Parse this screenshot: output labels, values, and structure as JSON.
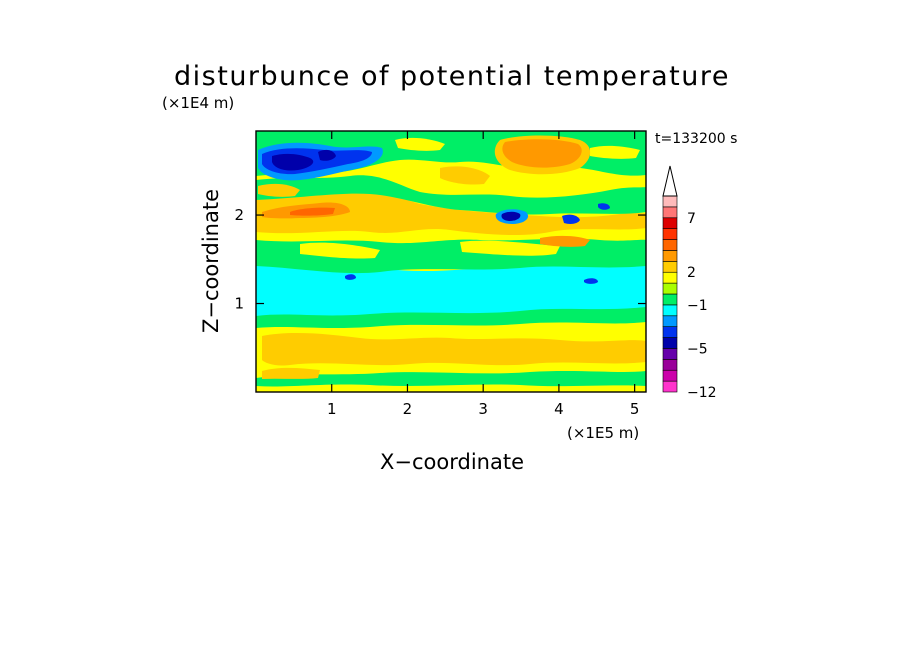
{
  "chart_data": {
    "type": "heatmap",
    "title": "disturbunce of potential temperature",
    "xlabel": "X−coordinate",
    "ylabel": "Z−coordinate",
    "x_scale_label": "(×1E5 m)",
    "y_scale_label": "(×1E4 m)",
    "time_label": "t=133200 s",
    "xlim": [
      0,
      5.15
    ],
    "ylim": [
      0,
      2.95
    ],
    "x_ticks": [
      1,
      2,
      3,
      4,
      5
    ],
    "y_ticks": [
      1,
      2
    ],
    "x_tick_labels": [
      "1",
      "2",
      "3",
      "4",
      "5"
    ],
    "y_tick_labels": [
      "1",
      "2"
    ],
    "colorbar": {
      "levels": [
        -12,
        -10,
        -8,
        -6,
        -5,
        -4,
        -3,
        -2,
        -1,
        0,
        1,
        2,
        3,
        4,
        5,
        6,
        7,
        8,
        9
      ],
      "labels": [
        {
          "value": 7,
          "text": "7"
        },
        {
          "value": 2,
          "text": "2"
        },
        {
          "value": -1,
          "text": "−1"
        },
        {
          "value": -5,
          "text": "−5"
        },
        {
          "value": -12,
          "text": "−12"
        }
      ],
      "colors_bottom_to_top": [
        "#ff33cc",
        "#cc00aa",
        "#990099",
        "#6600aa",
        "#0000aa",
        "#0033ee",
        "#0099ff",
        "#00ffff",
        "#00ee66",
        "#aaff00",
        "#ffff00",
        "#ffcc00",
        "#ff9900",
        "#ff6600",
        "#ff3300",
        "#dd0000",
        "#ff7777",
        "#ffbbbb"
      ],
      "extend": "max"
    },
    "field_bands_bottom_to_top": [
      {
        "z_from": 0.0,
        "z_to": 0.08,
        "level": "yellow"
      },
      {
        "z_from": 0.08,
        "z_to": 0.25,
        "level": "green"
      },
      {
        "z_from": 0.25,
        "z_to": 0.7,
        "level": "yellow-orange"
      },
      {
        "z_from": 0.7,
        "z_to": 0.85,
        "level": "green"
      },
      {
        "z_from": 0.85,
        "z_to": 1.35,
        "level": "cyan"
      },
      {
        "z_from": 1.35,
        "z_to": 1.55,
        "level": "green"
      },
      {
        "z_from": 1.55,
        "z_to": 1.8,
        "level": "yellow"
      },
      {
        "z_from": 1.8,
        "z_to": 2.05,
        "level": "green"
      },
      {
        "z_from": 2.05,
        "z_to": 2.35,
        "level": "yellow-orange"
      },
      {
        "z_from": 2.35,
        "z_to": 2.6,
        "level": "green"
      },
      {
        "z_from": 2.6,
        "z_to": 2.95,
        "level": "blue (x<1.6), orange (x 3.1-4.1)"
      }
    ]
  }
}
